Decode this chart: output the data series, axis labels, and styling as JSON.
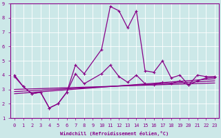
{
  "xlabel": "Windchill (Refroidissement éolien,°C)",
  "bg_color": "#cce8e8",
  "line_color": "#880088",
  "xlim": [
    -0.5,
    23.5
  ],
  "ylim": [
    1,
    9
  ],
  "xticks": [
    0,
    1,
    2,
    3,
    4,
    5,
    6,
    7,
    8,
    9,
    10,
    11,
    12,
    13,
    14,
    15,
    16,
    17,
    18,
    19,
    20,
    21,
    22,
    23
  ],
  "yticks": [
    1,
    2,
    3,
    4,
    5,
    6,
    7,
    8,
    9
  ],
  "series": {
    "main": {
      "x": [
        0,
        1,
        2,
        3,
        4,
        5,
        6,
        7,
        8,
        10,
        11,
        12,
        13,
        14,
        15,
        16,
        17,
        18,
        19,
        20,
        21,
        22,
        23
      ],
      "y": [
        4.0,
        3.2,
        2.7,
        2.8,
        1.7,
        2.0,
        2.8,
        4.7,
        4.1,
        5.8,
        8.8,
        8.5,
        7.3,
        8.5,
        4.3,
        4.2,
        5.0,
        3.8,
        4.0,
        3.3,
        4.0,
        3.9,
        3.9
      ]
    },
    "line2": {
      "x": [
        0,
        1,
        2,
        3,
        4,
        5,
        6,
        7,
        8,
        10,
        11,
        12,
        13,
        14,
        15,
        16,
        17,
        18,
        19,
        20,
        21,
        22,
        23
      ],
      "y": [
        3.9,
        3.2,
        2.7,
        2.8,
        1.7,
        2.0,
        2.8,
        4.1,
        3.4,
        4.1,
        4.7,
        3.9,
        3.5,
        4.0,
        3.4,
        3.3,
        3.5,
        3.4,
        3.6,
        3.3,
        3.6,
        3.8,
        3.85
      ]
    },
    "trend1": {
      "x": [
        0,
        23
      ],
      "y": [
        2.85,
        3.6
      ]
    },
    "trend2": {
      "x": [
        0,
        23
      ],
      "y": [
        2.7,
        3.75
      ]
    },
    "trend3": {
      "x": [
        0,
        23
      ],
      "y": [
        3.0,
        3.45
      ]
    }
  }
}
